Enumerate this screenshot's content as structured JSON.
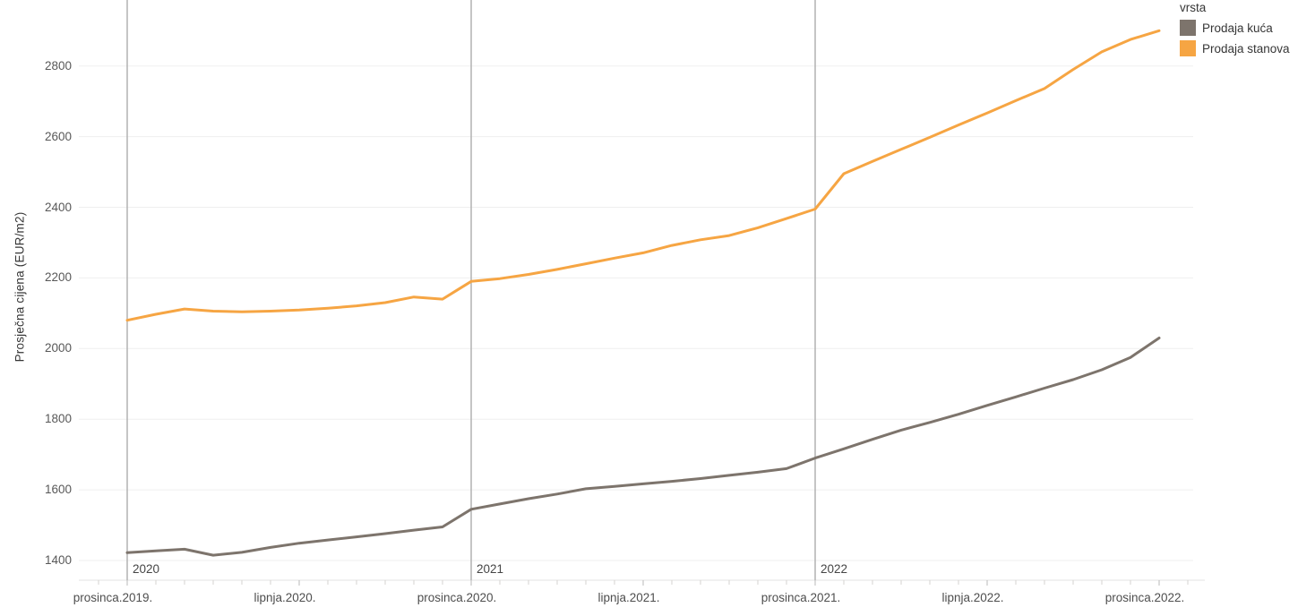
{
  "chart_data": {
    "type": "line",
    "title": "",
    "xlabel": "",
    "ylabel": "Prosječna cijena (EUR/m2)",
    "grid": "horizontal light gridlines; vertical gray lines at year boundaries",
    "legend_position": "top-right",
    "legend": {
      "title": "vrsta"
    },
    "x": [
      "2019-12",
      "2020-01",
      "2020-02",
      "2020-03",
      "2020-04",
      "2020-05",
      "2020-06",
      "2020-07",
      "2020-08",
      "2020-09",
      "2020-10",
      "2020-11",
      "2020-12",
      "2021-01",
      "2021-02",
      "2021-03",
      "2021-04",
      "2021-05",
      "2021-06",
      "2021-07",
      "2021-08",
      "2021-09",
      "2021-10",
      "2021-11",
      "2021-12",
      "2022-01",
      "2022-02",
      "2022-03",
      "2022-04",
      "2022-05",
      "2022-06",
      "2022-07",
      "2022-08",
      "2022-09",
      "2022-10",
      "2022-11",
      "2022-12"
    ],
    "x_tick_labels": [
      "prosinca.2019.",
      "lipnja.2020.",
      "prosinca.2020.",
      "lipnja.2021.",
      "prosinca.2021.",
      "lipnja.2022.",
      "prosinca.2022."
    ],
    "x_tick_month_indices": [
      0,
      6,
      12,
      18,
      24,
      30,
      36
    ],
    "year_annotations": [
      {
        "label": "2020",
        "month_index": 0
      },
      {
        "label": "2021",
        "month_index": 12
      },
      {
        "label": "2022",
        "month_index": 24
      }
    ],
    "y_ticks": [
      1400,
      1600,
      1800,
      2000,
      2200,
      2400,
      2600,
      2800
    ],
    "ylim": [
      1344,
      2985
    ],
    "series": [
      {
        "name": "Prodaja kuća",
        "color": "#7d746c",
        "values": [
          1422,
          1427,
          1432,
          1415,
          1423,
          1437,
          1449,
          1458,
          1467,
          1476,
          1486,
          1495,
          1545,
          1560,
          1575,
          1588,
          1603,
          1610,
          1617,
          1624,
          1632,
          1641,
          1650,
          1660,
          1690,
          1716,
          1743,
          1769,
          1791,
          1814,
          1839,
          1863,
          1888,
          1912,
          1940,
          1975,
          2030
        ]
      },
      {
        "name": "Prodaja stanova",
        "color": "#f6a543",
        "values": [
          2080,
          2097,
          2112,
          2106,
          2104,
          2106,
          2109,
          2114,
          2121,
          2130,
          2146,
          2140,
          2190,
          2198,
          2210,
          2224,
          2240,
          2256,
          2271,
          2292,
          2308,
          2320,
          2342,
          2368,
          2395,
          2495,
          2530,
          2564,
          2598,
          2633,
          2667,
          2702,
          2736,
          2790,
          2840,
          2875,
          2900
        ]
      }
    ]
  },
  "colors": {
    "background": "#ffffff",
    "horizontal_gridline": "#efefef",
    "year_gridline": "#b2b2b2",
    "axis_bottom_border": "#e3e3e3",
    "tick_mark": "#d6d3d0",
    "tick_mark_major": "#b9b9b9",
    "kuca_line": "#7d746c",
    "stanova_line": "#f6a543"
  }
}
